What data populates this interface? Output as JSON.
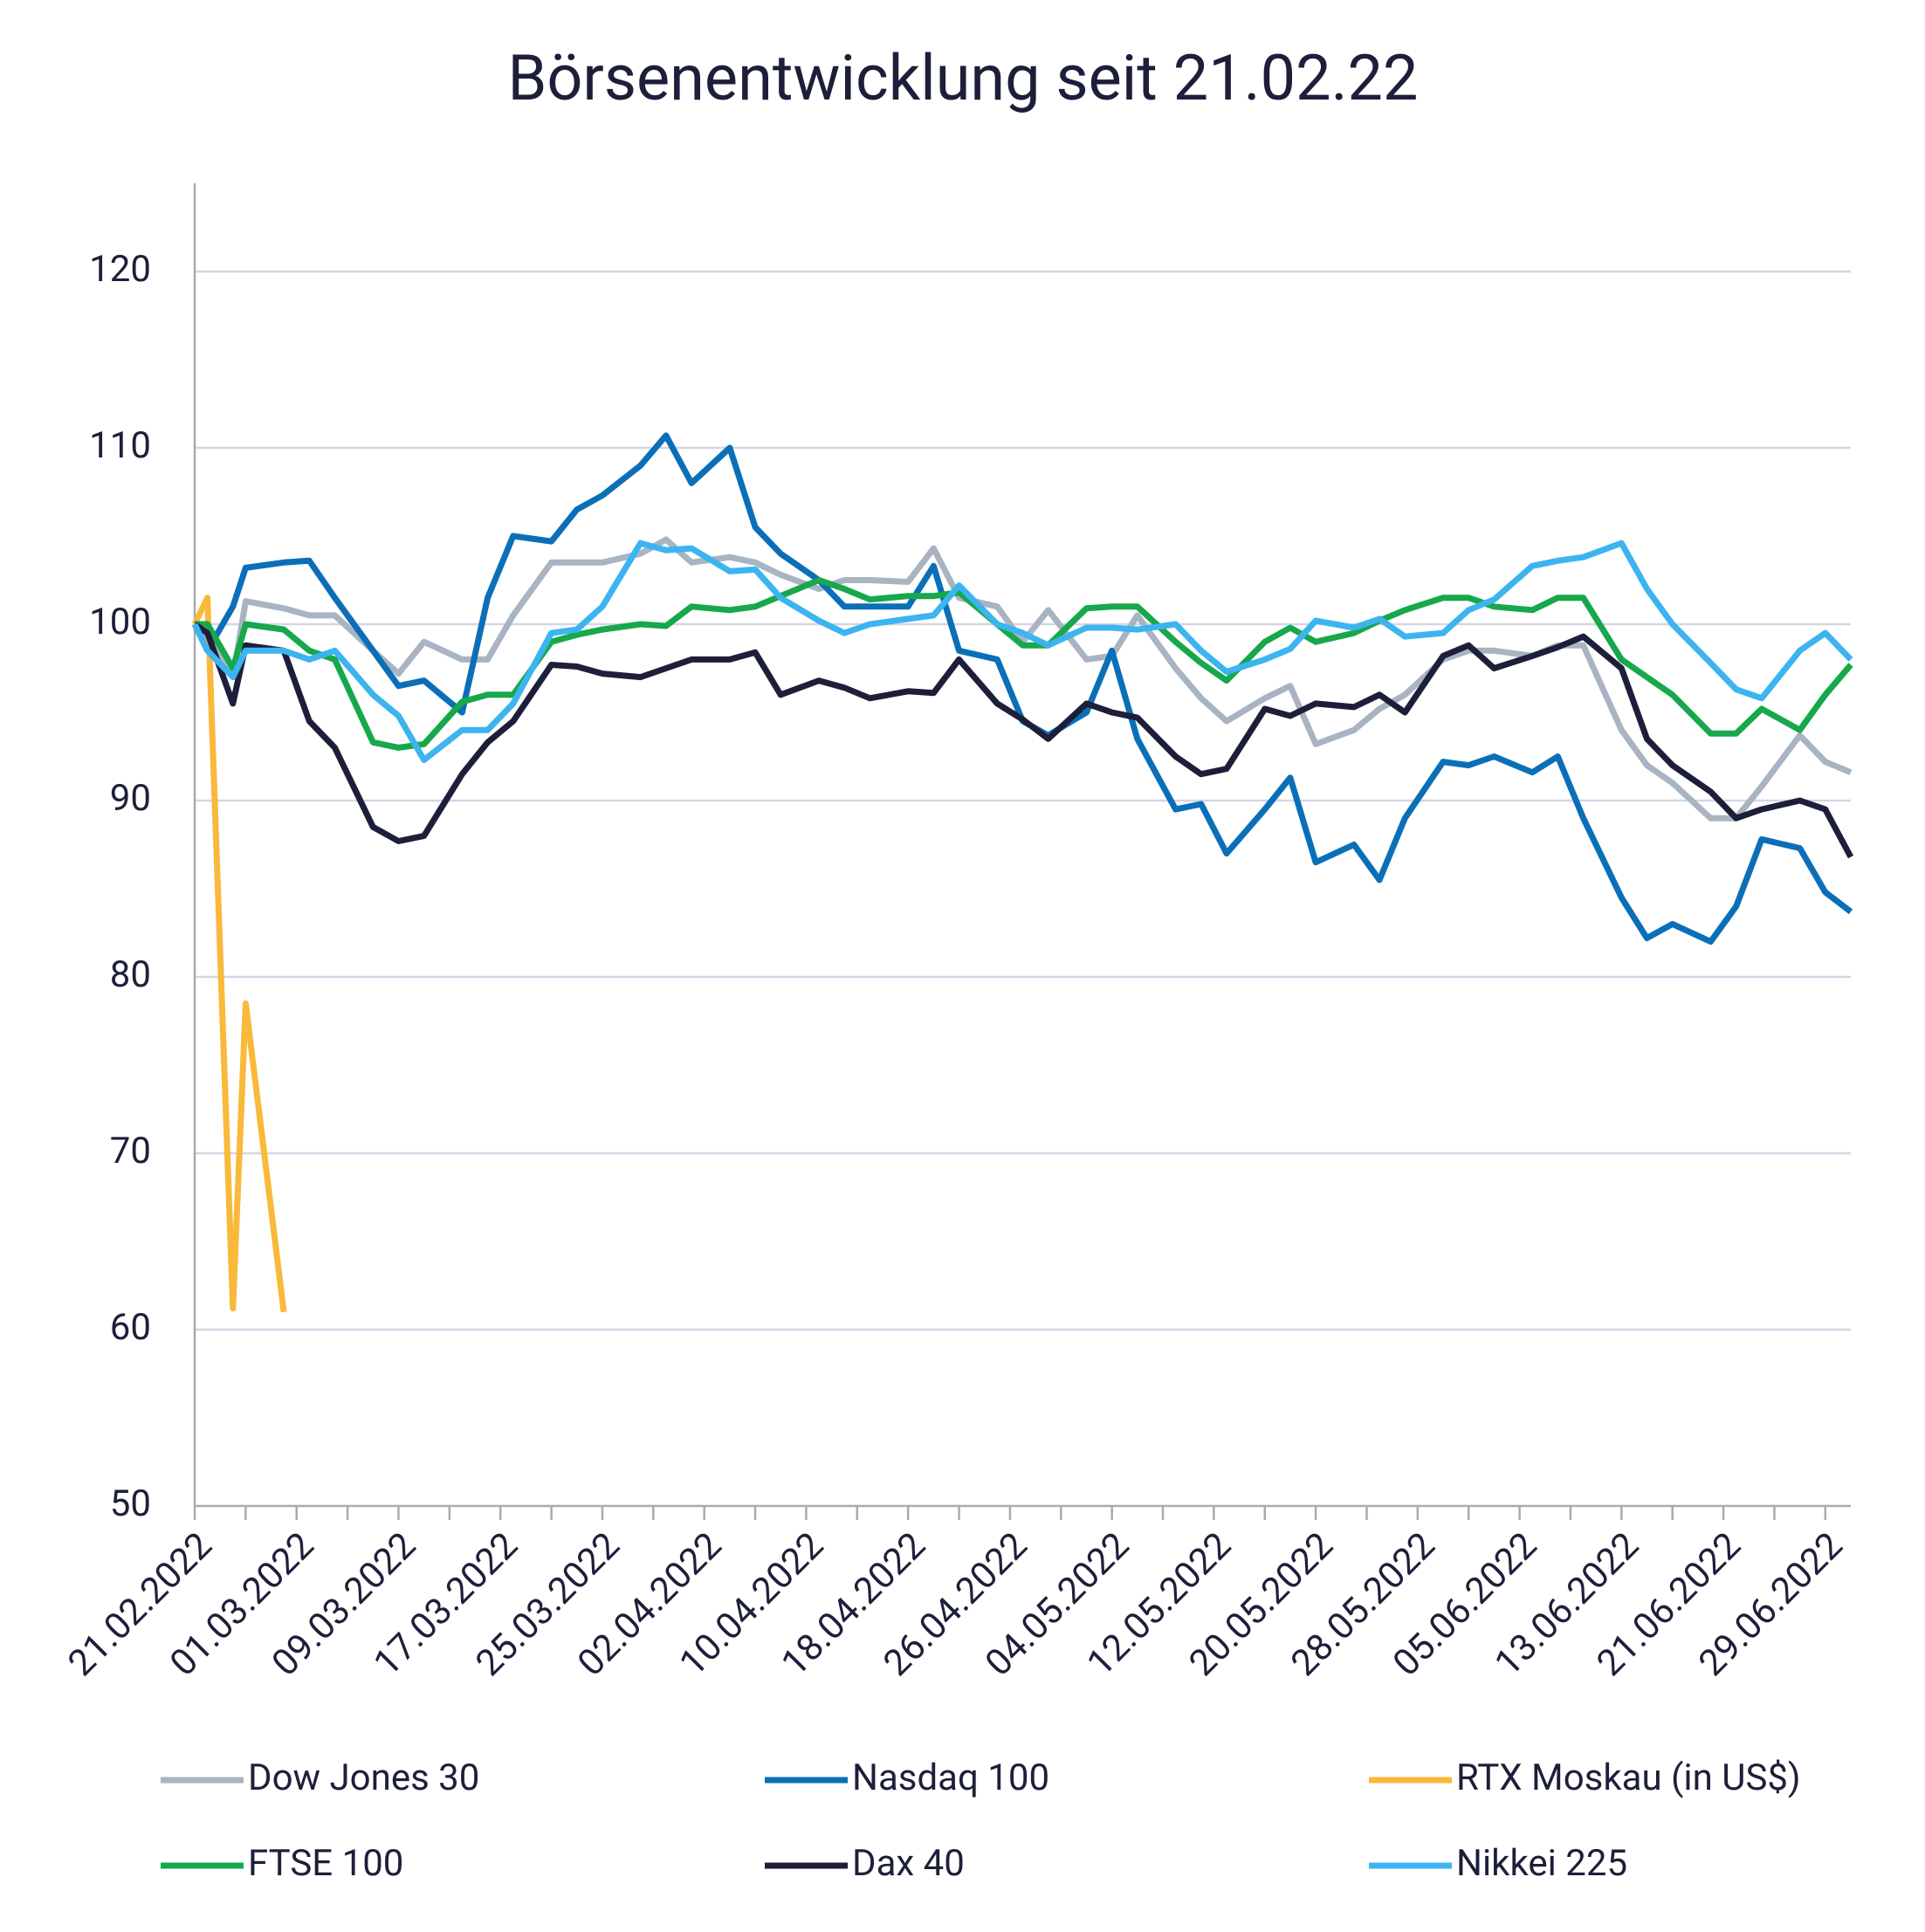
{
  "chart_data": {
    "type": "line",
    "title": "Börsenentwicklung seit 21.02.22",
    "x": [
      "21.02.2022",
      "22.02.2022",
      "24.02.2022",
      "25.02.2022",
      "28.02.2022",
      "02.03.2022",
      "04.03.2022",
      "07.03.2022",
      "09.03.2022",
      "11.03.2022",
      "14.03.2022",
      "16.03.2022",
      "18.03.2022",
      "21.03.2022",
      "23.03.2022",
      "25.03.2022",
      "28.03.2022",
      "30.03.2022",
      "01.04.2022",
      "04.04.2022",
      "06.04.2022",
      "08.04.2022",
      "11.04.2022",
      "13.04.2022",
      "15.04.2022",
      "18.04.2022",
      "20.04.2022",
      "22.04.2022",
      "25.04.2022",
      "27.04.2022",
      "29.04.2022",
      "02.05.2022",
      "04.05.2022",
      "06.05.2022",
      "09.05.2022",
      "11.05.2022",
      "13.05.2022",
      "16.05.2022",
      "18.05.2022",
      "20.05.2022",
      "23.05.2022",
      "25.05.2022",
      "27.05.2022",
      "30.05.2022",
      "01.06.2022",
      "03.06.2022",
      "06.06.2022",
      "08.06.2022",
      "10.06.2022",
      "13.06.2022",
      "15.06.2022",
      "17.06.2022",
      "20.06.2022",
      "22.06.2022",
      "24.06.2022",
      "27.06.2022",
      "29.06.2022",
      "01.07.2022"
    ],
    "series": [
      {
        "name": "Dow Jones 30",
        "color": "#a9b4c2",
        "values": [
          100,
          99.3,
          97,
          101.3,
          100.9,
          100.5,
          100.5,
          98.5,
          97.2,
          99,
          98,
          98,
          100.5,
          103.5,
          103.5,
          103.5,
          104,
          104.8,
          103.5,
          103.8,
          103.5,
          102.8,
          102,
          102.5,
          102.5,
          102.4,
          104.3,
          101.5,
          101,
          99,
          100.8,
          98,
          98.2,
          100.5,
          97.5,
          95.8,
          94.5,
          95.8,
          96.5,
          93.2,
          94,
          95.2,
          96,
          98,
          98.5,
          98.5,
          98.2,
          98.8,
          98.8,
          94,
          92,
          91,
          89,
          89,
          90.8,
          93.7,
          92.2,
          91.6
        ]
      },
      {
        "name": "Nasdaq 100",
        "color": "#0b6fb8",
        "values": [
          100,
          98.5,
          101,
          103.2,
          103.5,
          103.6,
          101.5,
          98.5,
          96.5,
          96.8,
          95,
          101.5,
          105,
          104.7,
          106.5,
          107.3,
          109,
          110.7,
          108,
          110,
          105.5,
          104,
          102.5,
          101,
          101,
          101,
          103.3,
          98.5,
          98,
          94.5,
          93.7,
          95,
          98.5,
          93.5,
          89.5,
          89.8,
          87,
          89.5,
          91.3,
          86.5,
          87.5,
          85.5,
          89,
          92.2,
          92,
          92.5,
          91.6,
          92.5,
          89,
          84.5,
          82.2,
          83,
          82,
          84,
          87.8,
          87.3,
          84.8,
          83.7
        ]
      },
      {
        "name": "RTX Moskau (in US$)",
        "color": "#f9b93a",
        "values": [
          100,
          101.5,
          61.2,
          78.5,
          61,
          null,
          null,
          null,
          null,
          null,
          null,
          null,
          null,
          null,
          null,
          null,
          null,
          null,
          null,
          null,
          null,
          null,
          null,
          null,
          null,
          null,
          null,
          null,
          null,
          null,
          null,
          null,
          null,
          null,
          null,
          null,
          null,
          null,
          null,
          null,
          null,
          null,
          null,
          null,
          null,
          null,
          null,
          null,
          null,
          null,
          null,
          null,
          null,
          null,
          null,
          null,
          null,
          null
        ]
      },
      {
        "name": "FTSE 100",
        "color": "#16a84b",
        "values": [
          100,
          100,
          97.5,
          100,
          99.7,
          98.5,
          98,
          93.3,
          93,
          93.2,
          95.6,
          96,
          96,
          99,
          99.4,
          99.7,
          100,
          99.9,
          101,
          100.8,
          101,
          101.6,
          102.5,
          102,
          101.4,
          101.6,
          101.6,
          101.8,
          100,
          98.8,
          98.8,
          100.9,
          101,
          101,
          99,
          97.8,
          96.8,
          99,
          99.8,
          99,
          99.5,
          100.2,
          100.8,
          101.5,
          101.5,
          101,
          100.8,
          101.5,
          101.5,
          98,
          97,
          96,
          93.8,
          93.8,
          95.2,
          94,
          96,
          97.7
        ]
      },
      {
        "name": "Dax 40",
        "color": "#1d1f3a",
        "values": [
          100,
          99.5,
          95.5,
          98.8,
          98.5,
          94.5,
          93,
          88.5,
          87.7,
          88,
          91.5,
          93.3,
          94.5,
          97.7,
          97.6,
          97.2,
          97,
          97.5,
          98,
          98,
          98.4,
          96,
          96.8,
          96.4,
          95.8,
          96.2,
          96.1,
          98,
          95.5,
          94.6,
          93.5,
          95.5,
          95,
          94.7,
          92.5,
          91.5,
          91.8,
          95.2,
          94.8,
          95.5,
          95.3,
          96,
          95,
          98.2,
          98.8,
          97.5,
          98.2,
          98.7,
          99.3,
          97.5,
          93.5,
          92,
          90.5,
          89,
          89.5,
          90,
          89.5,
          86.8
        ]
      },
      {
        "name": "Nikkei 225",
        "color": "#3cb4f0",
        "values": [
          100,
          98.5,
          97,
          98.5,
          98.5,
          98,
          98.5,
          96,
          94.8,
          92.3,
          94,
          94,
          95.5,
          99.5,
          99.7,
          101,
          104.6,
          104.2,
          104.3,
          103,
          103.1,
          101.5,
          100.2,
          99.5,
          100,
          100.3,
          100.5,
          102.2,
          100,
          99.5,
          98.8,
          99.8,
          99.8,
          99.7,
          100,
          98.5,
          97.3,
          98,
          98.6,
          100.2,
          99.8,
          100.3,
          99.3,
          99.5,
          100.8,
          101.4,
          103.3,
          103.6,
          103.8,
          104.6,
          102,
          100,
          97.8,
          96.3,
          95.8,
          98.5,
          99.5,
          98
        ]
      }
    ],
    "xlim": [
      "21.02.2022",
      "01.07.2022"
    ],
    "xticks": [
      "21.02.2022",
      "01.03.2022",
      "09.03.2022",
      "17.03.2022",
      "25.03.2022",
      "02.04.2022",
      "10.04.2022",
      "18.04.2022",
      "26.04.2022",
      "04.05.2022",
      "12.05.2022",
      "20.05.2022",
      "28.05.2022",
      "05.06.2022",
      "13.06.2022",
      "21.06.2022",
      "29.06.2022"
    ],
    "ylim": [
      50,
      125
    ],
    "yticks": [
      50,
      60,
      70,
      80,
      90,
      100,
      110,
      120
    ],
    "grid": true,
    "legend": "bottom"
  }
}
